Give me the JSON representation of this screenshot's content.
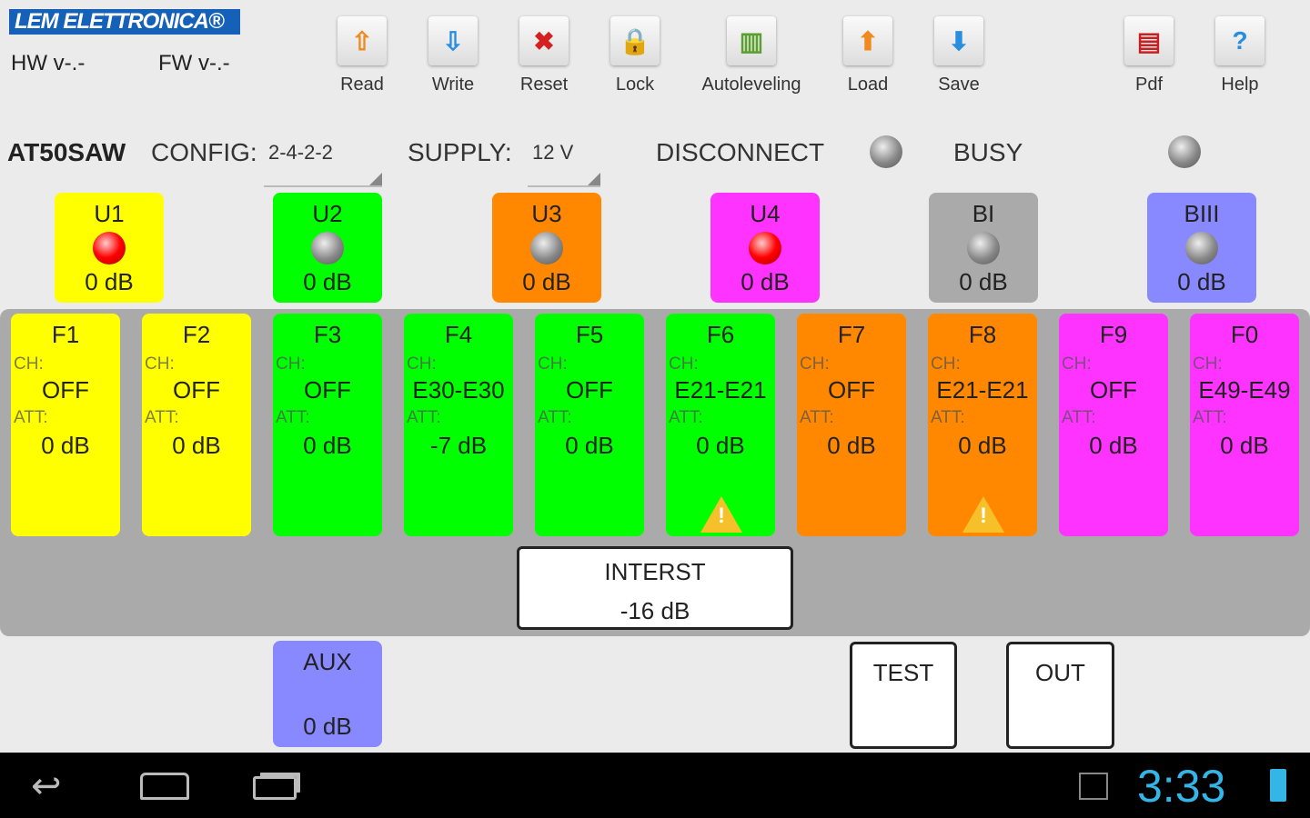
{
  "header": {
    "logo": "LEM ELETTRONICA®",
    "hw": "HW v-.-",
    "fw": "FW v-.-"
  },
  "toolbar": [
    {
      "label": "Read",
      "icon": "read-icon",
      "glyph": "⇧",
      "color": "#f08a1e"
    },
    {
      "label": "Write",
      "icon": "write-icon",
      "glyph": "⇩",
      "color": "#2a8ee0"
    },
    {
      "label": "Reset",
      "icon": "reset-icon",
      "glyph": "✖",
      "color": "#d42020"
    },
    {
      "label": "Lock",
      "icon": "lock-icon",
      "glyph": "🔒",
      "color": "#f08a1e"
    },
    {
      "label": "Autoleveling",
      "icon": "autoleveling-icon",
      "glyph": "▥",
      "color": "#5aa02c"
    },
    {
      "label": "Load",
      "icon": "load-icon",
      "glyph": "⬆",
      "color": "#f08a1e"
    },
    {
      "label": "Save",
      "icon": "save-icon",
      "glyph": "⬇",
      "color": "#2a8ee0"
    },
    {
      "label": "Pdf",
      "icon": "pdf-icon",
      "glyph": "▤",
      "color": "#c82020"
    },
    {
      "label": "Help",
      "icon": "help-icon",
      "glyph": "?",
      "color": "#2a8ee0"
    }
  ],
  "status": {
    "model": "AT50SAW",
    "config_label": "CONFIG:",
    "config_value": "2-4-2-2",
    "supply_label": "SUPPLY:",
    "supply_value": "12 V",
    "disconnect": "DISCONNECT",
    "busy": "BUSY"
  },
  "inputs": [
    {
      "name": "U1",
      "level": "0 dB",
      "led": "red",
      "color": "#ffff00"
    },
    {
      "name": "U2",
      "level": "0 dB",
      "led": "gray",
      "color": "#00ff00"
    },
    {
      "name": "U3",
      "level": "0 dB",
      "led": "gray",
      "color": "#ff8800"
    },
    {
      "name": "U4",
      "level": "0 dB",
      "led": "red",
      "color": "#ff33ff"
    },
    {
      "name": "BI",
      "level": "0 dB",
      "led": "gray",
      "color": "#aaaaaa"
    },
    {
      "name": "BIII",
      "level": "0 dB",
      "led": "gray",
      "color": "#8888ff"
    }
  ],
  "filters": [
    {
      "name": "F1",
      "ch_label": "CH:",
      "ch": "OFF",
      "att_label": "ATT:",
      "att": "0 dB",
      "warning": false,
      "color": "#ffff00"
    },
    {
      "name": "F2",
      "ch_label": "CH:",
      "ch": "OFF",
      "att_label": "ATT:",
      "att": "0 dB",
      "warning": false,
      "color": "#ffff00"
    },
    {
      "name": "F3",
      "ch_label": "CH:",
      "ch": "OFF",
      "att_label": "ATT:",
      "att": "0 dB",
      "warning": false,
      "color": "#00ff00"
    },
    {
      "name": "F4",
      "ch_label": "CH:",
      "ch": "E30-E30",
      "att_label": "ATT:",
      "att": "-7 dB",
      "warning": false,
      "color": "#00ff00"
    },
    {
      "name": "F5",
      "ch_label": "CH:",
      "ch": "OFF",
      "att_label": "ATT:",
      "att": "0 dB",
      "warning": false,
      "color": "#00ff00"
    },
    {
      "name": "F6",
      "ch_label": "CH:",
      "ch": "E21-E21",
      "att_label": "ATT:",
      "att": "0 dB",
      "warning": true,
      "color": "#00ff00"
    },
    {
      "name": "F7",
      "ch_label": "CH:",
      "ch": "OFF",
      "att_label": "ATT:",
      "att": "0 dB",
      "warning": false,
      "color": "#ff8800"
    },
    {
      "name": "F8",
      "ch_label": "CH:",
      "ch": "E21-E21",
      "att_label": "ATT:",
      "att": "0 dB",
      "warning": true,
      "color": "#ff8800"
    },
    {
      "name": "F9",
      "ch_label": "CH:",
      "ch": "OFF",
      "att_label": "ATT:",
      "att": "0 dB",
      "warning": false,
      "color": "#ff33ff"
    },
    {
      "name": "F0",
      "ch_label": "CH:",
      "ch": "E49-E49",
      "att_label": "ATT:",
      "att": "0 dB",
      "warning": false,
      "color": "#ff33ff"
    }
  ],
  "interst": {
    "label": "INTERST",
    "value": "-16 dB"
  },
  "aux": {
    "label": "AUX",
    "value": "0 dB",
    "color": "#8888ff"
  },
  "buttons": {
    "test": "TEST",
    "out": "OUT"
  },
  "nav": {
    "clock": "3:33"
  }
}
